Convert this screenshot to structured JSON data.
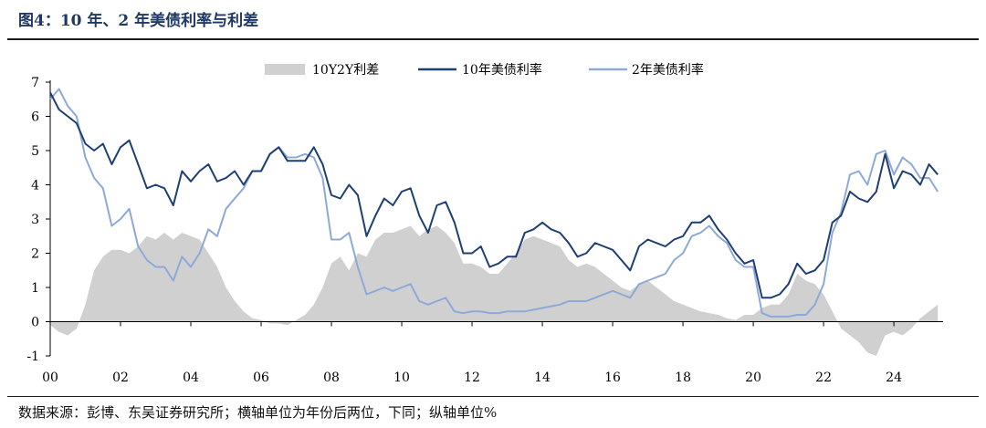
{
  "figure": {
    "title": "图4：10 年、2 年美债利率与利差",
    "source": "数据来源：彭博、东吴证券研究所；横轴单位为年份后两位，下同；纵轴单位%"
  },
  "chart_data": {
    "type": "line",
    "title": "图4：10 年、2 年美债利率与利差",
    "xlabel": "",
    "ylabel": "",
    "xlim": [
      2000,
      2025.4
    ],
    "ylim": [
      -1,
      7
    ],
    "grid": false,
    "legend_position": "top-center",
    "x_tick_labels": [
      "00",
      "02",
      "04",
      "06",
      "08",
      "10",
      "12",
      "14",
      "16",
      "18",
      "20",
      "22",
      "24"
    ],
    "x_ticks": [
      2000,
      2002,
      2004,
      2006,
      2008,
      2010,
      2012,
      2014,
      2016,
      2018,
      2020,
      2022,
      2024
    ],
    "y_tick_labels": [
      "-1",
      "0",
      "1",
      "2",
      "3",
      "4",
      "5",
      "6",
      "7"
    ],
    "y_ticks": [
      -1,
      0,
      1,
      2,
      3,
      4,
      5,
      6,
      7
    ],
    "colors": {
      "spread": "#d0d0d0",
      "y10": "#1f3f73",
      "y2": "#8ea9d8"
    },
    "series": [
      {
        "name": "10Y2Y利差",
        "type": "area",
        "x": [
          2000.0,
          2000.25,
          2000.5,
          2000.75,
          2001.0,
          2001.25,
          2001.5,
          2001.75,
          2002.0,
          2002.25,
          2002.5,
          2002.75,
          2003.0,
          2003.25,
          2003.5,
          2003.75,
          2004.0,
          2004.25,
          2004.5,
          2004.75,
          2005.0,
          2005.25,
          2005.5,
          2005.75,
          2006.0,
          2006.25,
          2006.5,
          2006.75,
          2007.0,
          2007.25,
          2007.5,
          2007.75,
          2008.0,
          2008.25,
          2008.5,
          2008.75,
          2009.0,
          2009.25,
          2009.5,
          2009.75,
          2010.0,
          2010.25,
          2010.5,
          2010.75,
          2011.0,
          2011.25,
          2011.5,
          2011.75,
          2012.0,
          2012.25,
          2012.5,
          2012.75,
          2013.0,
          2013.25,
          2013.5,
          2013.75,
          2014.0,
          2014.25,
          2014.5,
          2014.75,
          2015.0,
          2015.25,
          2015.5,
          2015.75,
          2016.0,
          2016.25,
          2016.5,
          2016.75,
          2017.0,
          2017.25,
          2017.5,
          2017.75,
          2018.0,
          2018.25,
          2018.5,
          2018.75,
          2019.0,
          2019.25,
          2019.5,
          2019.75,
          2020.0,
          2020.25,
          2020.5,
          2020.75,
          2021.0,
          2021.25,
          2021.5,
          2021.75,
          2022.0,
          2022.25,
          2022.5,
          2022.75,
          2023.0,
          2023.25,
          2023.5,
          2023.75,
          2024.0,
          2024.25,
          2024.5,
          2024.75,
          2025.0,
          2025.25
        ],
        "values": [
          -0.1,
          -0.3,
          -0.4,
          -0.2,
          0.5,
          1.5,
          1.9,
          2.1,
          2.1,
          2.0,
          2.2,
          2.5,
          2.4,
          2.6,
          2.4,
          2.6,
          2.5,
          2.4,
          2.0,
          1.6,
          1.0,
          0.6,
          0.3,
          0.1,
          0.05,
          -0.05,
          -0.05,
          -0.1,
          0.05,
          0.2,
          0.5,
          1.0,
          1.7,
          1.9,
          1.5,
          2.0,
          1.9,
          2.4,
          2.6,
          2.6,
          2.7,
          2.8,
          2.5,
          2.7,
          2.8,
          2.6,
          2.3,
          1.7,
          1.7,
          1.6,
          1.4,
          1.4,
          1.7,
          2.0,
          2.4,
          2.5,
          2.4,
          2.3,
          2.2,
          1.8,
          1.6,
          1.7,
          1.6,
          1.4,
          1.2,
          1.0,
          0.9,
          1.1,
          1.2,
          1.0,
          0.8,
          0.6,
          0.5,
          0.4,
          0.3,
          0.25,
          0.2,
          0.1,
          0.05,
          0.2,
          0.2,
          0.4,
          0.5,
          0.5,
          0.8,
          1.4,
          1.2,
          1.1,
          0.8,
          0.3,
          -0.2,
          -0.4,
          -0.6,
          -0.9,
          -1.0,
          -0.4,
          -0.3,
          -0.4,
          -0.2,
          0.1,
          0.3,
          0.5
        ]
      },
      {
        "name": "10年美债利率",
        "type": "line",
        "x": [
          2000.0,
          2000.25,
          2000.5,
          2000.75,
          2001.0,
          2001.25,
          2001.5,
          2001.75,
          2002.0,
          2002.25,
          2002.5,
          2002.75,
          2003.0,
          2003.25,
          2003.5,
          2003.75,
          2004.0,
          2004.25,
          2004.5,
          2004.75,
          2005.0,
          2005.25,
          2005.5,
          2005.75,
          2006.0,
          2006.25,
          2006.5,
          2006.75,
          2007.0,
          2007.25,
          2007.5,
          2007.75,
          2008.0,
          2008.25,
          2008.5,
          2008.75,
          2009.0,
          2009.25,
          2009.5,
          2009.75,
          2010.0,
          2010.25,
          2010.5,
          2010.75,
          2011.0,
          2011.25,
          2011.5,
          2011.75,
          2012.0,
          2012.25,
          2012.5,
          2012.75,
          2013.0,
          2013.25,
          2013.5,
          2013.75,
          2014.0,
          2014.25,
          2014.5,
          2014.75,
          2015.0,
          2015.25,
          2015.5,
          2015.75,
          2016.0,
          2016.25,
          2016.5,
          2016.75,
          2017.0,
          2017.25,
          2017.5,
          2017.75,
          2018.0,
          2018.25,
          2018.5,
          2018.75,
          2019.0,
          2019.25,
          2019.5,
          2019.75,
          2020.0,
          2020.25,
          2020.5,
          2020.75,
          2021.0,
          2021.25,
          2021.5,
          2021.75,
          2022.0,
          2022.25,
          2022.5,
          2022.75,
          2023.0,
          2023.25,
          2023.5,
          2023.75,
          2024.0,
          2024.25,
          2024.5,
          2024.75,
          2025.0,
          2025.25
        ],
        "values": [
          6.7,
          6.2,
          6.0,
          5.8,
          5.2,
          5.0,
          5.2,
          4.6,
          5.1,
          5.3,
          4.6,
          3.9,
          4.0,
          3.9,
          3.4,
          4.4,
          4.1,
          4.4,
          4.6,
          4.1,
          4.2,
          4.4,
          4.0,
          4.4,
          4.4,
          4.9,
          5.1,
          4.7,
          4.7,
          4.7,
          5.1,
          4.6,
          3.7,
          3.6,
          4.0,
          3.7,
          2.5,
          3.1,
          3.6,
          3.4,
          3.8,
          3.9,
          3.1,
          2.6,
          3.4,
          3.5,
          2.9,
          2.0,
          2.0,
          2.2,
          1.6,
          1.7,
          1.9,
          1.9,
          2.6,
          2.7,
          2.9,
          2.7,
          2.6,
          2.3,
          1.9,
          2.0,
          2.3,
          2.2,
          2.1,
          1.8,
          1.5,
          2.2,
          2.4,
          2.3,
          2.2,
          2.4,
          2.5,
          2.9,
          2.9,
          3.1,
          2.7,
          2.4,
          2.0,
          1.7,
          1.8,
          0.7,
          0.7,
          0.8,
          1.1,
          1.7,
          1.4,
          1.5,
          1.8,
          2.9,
          3.1,
          3.8,
          3.6,
          3.5,
          3.8,
          4.9,
          3.9,
          4.4,
          4.3,
          4.0,
          4.6,
          4.3
        ]
      },
      {
        "name": "2年美债利率",
        "type": "line",
        "x": [
          2000.0,
          2000.25,
          2000.5,
          2000.75,
          2001.0,
          2001.25,
          2001.5,
          2001.75,
          2002.0,
          2002.25,
          2002.5,
          2002.75,
          2003.0,
          2003.25,
          2003.5,
          2003.75,
          2004.0,
          2004.25,
          2004.5,
          2004.75,
          2005.0,
          2005.25,
          2005.5,
          2005.75,
          2006.0,
          2006.25,
          2006.5,
          2006.75,
          2007.0,
          2007.25,
          2007.5,
          2007.75,
          2008.0,
          2008.25,
          2008.5,
          2008.75,
          2009.0,
          2009.25,
          2009.5,
          2009.75,
          2010.0,
          2010.25,
          2010.5,
          2010.75,
          2011.0,
          2011.25,
          2011.5,
          2011.75,
          2012.0,
          2012.25,
          2012.5,
          2012.75,
          2013.0,
          2013.25,
          2013.5,
          2013.75,
          2014.0,
          2014.25,
          2014.5,
          2014.75,
          2015.0,
          2015.25,
          2015.5,
          2015.75,
          2016.0,
          2016.25,
          2016.5,
          2016.75,
          2017.0,
          2017.25,
          2017.5,
          2017.75,
          2018.0,
          2018.25,
          2018.5,
          2018.75,
          2019.0,
          2019.25,
          2019.5,
          2019.75,
          2020.0,
          2020.25,
          2020.5,
          2020.75,
          2021.0,
          2021.25,
          2021.5,
          2021.75,
          2022.0,
          2022.25,
          2022.5,
          2022.75,
          2023.0,
          2023.25,
          2023.5,
          2023.75,
          2024.0,
          2024.25,
          2024.5,
          2024.75,
          2025.0,
          2025.25
        ],
        "values": [
          6.5,
          6.8,
          6.3,
          6.0,
          4.8,
          4.2,
          3.9,
          2.8,
          3.0,
          3.3,
          2.2,
          1.8,
          1.6,
          1.6,
          1.2,
          1.9,
          1.6,
          2.0,
          2.7,
          2.5,
          3.3,
          3.6,
          3.9,
          4.4,
          4.4,
          4.9,
          5.1,
          4.8,
          4.8,
          4.9,
          4.8,
          4.2,
          2.4,
          2.4,
          2.6,
          1.6,
          0.8,
          0.9,
          1.0,
          0.9,
          1.0,
          1.1,
          0.6,
          0.5,
          0.6,
          0.7,
          0.3,
          0.25,
          0.3,
          0.3,
          0.25,
          0.25,
          0.3,
          0.3,
          0.3,
          0.35,
          0.4,
          0.45,
          0.5,
          0.6,
          0.6,
          0.6,
          0.7,
          0.8,
          0.9,
          0.8,
          0.7,
          1.1,
          1.2,
          1.3,
          1.4,
          1.8,
          2.0,
          2.5,
          2.6,
          2.8,
          2.5,
          2.3,
          1.8,
          1.6,
          1.6,
          0.25,
          0.15,
          0.15,
          0.15,
          0.2,
          0.2,
          0.5,
          1.1,
          2.6,
          3.2,
          4.3,
          4.4,
          4.0,
          4.9,
          5.0,
          4.3,
          4.8,
          4.6,
          4.2,
          4.2,
          3.8
        ]
      }
    ]
  }
}
